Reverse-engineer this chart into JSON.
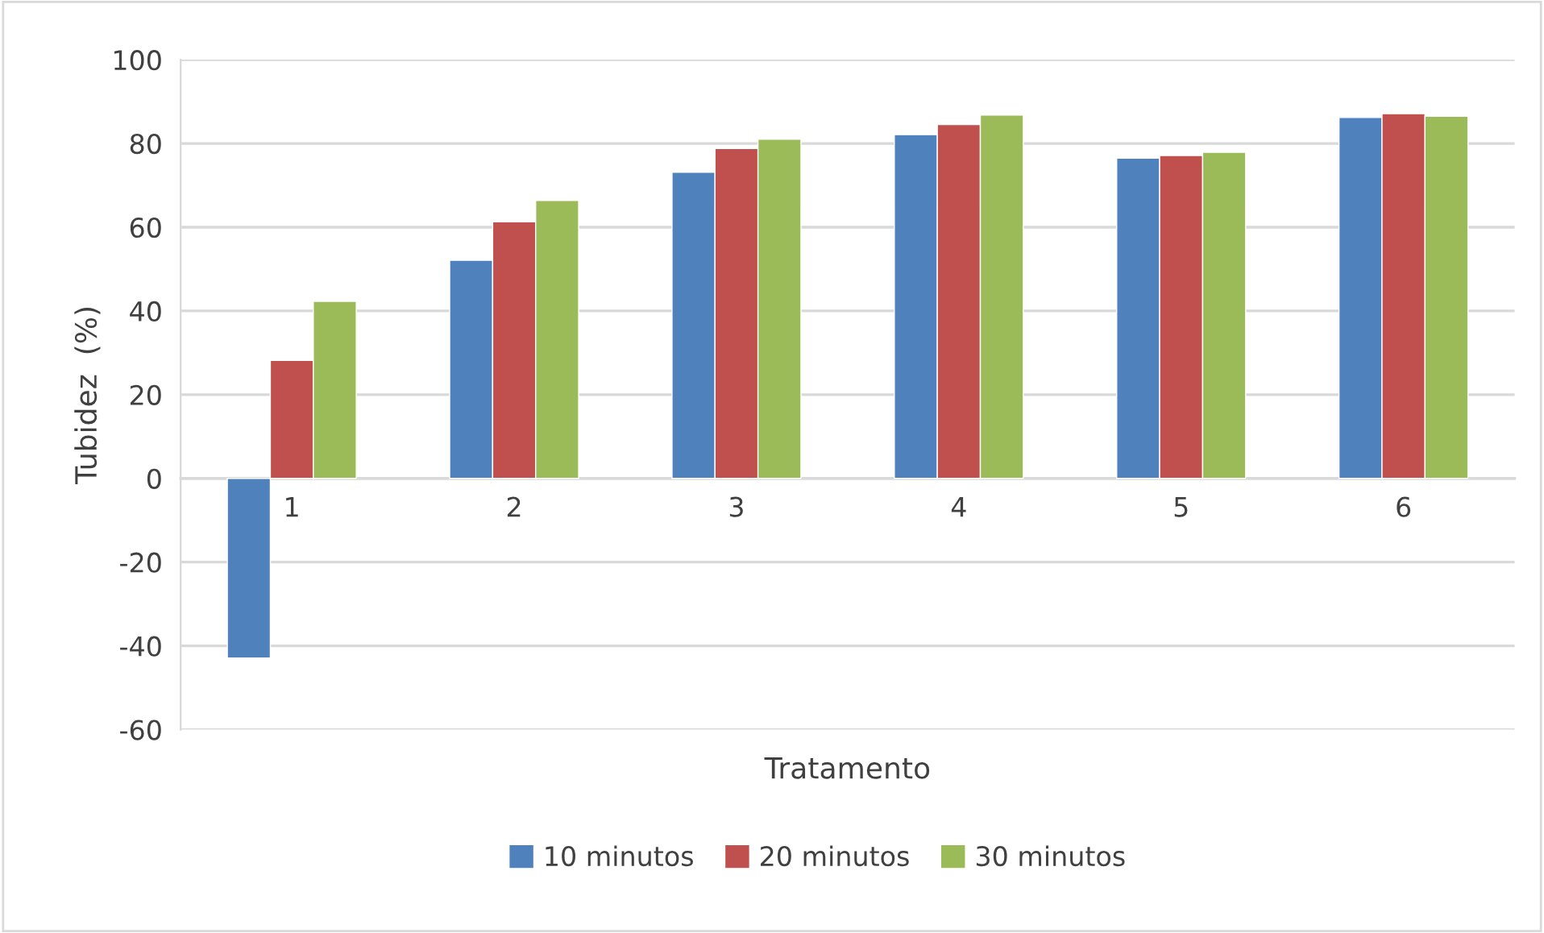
{
  "chart_data": {
    "type": "bar",
    "xlabel": "Tratamento",
    "ylabel": "Tubidez  (%)",
    "categories": [
      "1",
      "2",
      "3",
      "4",
      "5",
      "6"
    ],
    "series": [
      {
        "name": "10 minutos",
        "color": "#4f81bd",
        "values": [
          -42.9,
          52.1,
          73.1,
          82.1,
          76.5,
          86.2
        ]
      },
      {
        "name": "20 minutos",
        "color": "#c0504d",
        "values": [
          28.2,
          61.3,
          78.8,
          84.5,
          77.1,
          87.1
        ]
      },
      {
        "name": "30 minutos",
        "color": "#9bbb59",
        "values": [
          42.3,
          66.4,
          81.0,
          86.8,
          77.9,
          86.5
        ]
      }
    ],
    "ylim": [
      -60,
      100
    ],
    "yticks": [
      -60,
      -40,
      -20,
      0,
      20,
      40,
      60,
      80,
      100
    ],
    "grid": "y",
    "legend": "bottom"
  }
}
